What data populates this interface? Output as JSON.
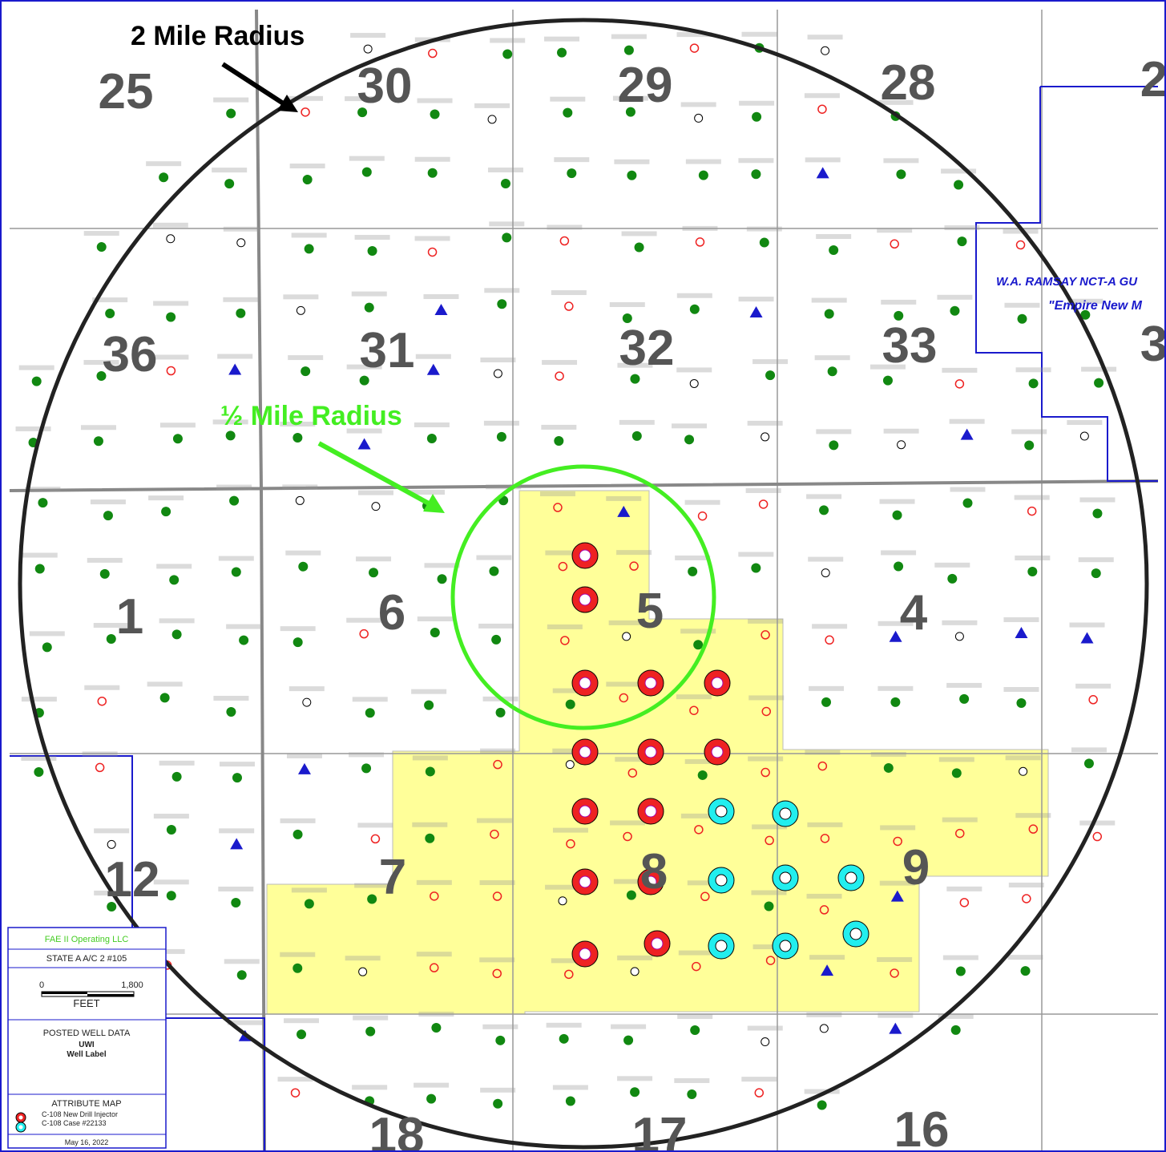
{
  "annotations": {
    "two_mile": "2 Mile Radius",
    "half_mile": "½ Mile Radius",
    "ramsay_unit": "W.A. RAMSAY NCT-A GU",
    "empire": "\"Empire New M"
  },
  "sections": [
    "25",
    "30",
    "29",
    "28",
    "2",
    "36",
    "31",
    "32",
    "33",
    "3",
    "1",
    "6",
    "5",
    "4",
    "12",
    "7",
    "8",
    "9",
    "18",
    "17",
    "16"
  ],
  "legend": {
    "operator": "FAE II Operating LLC",
    "well": "STATE A A/C 2 #105",
    "scale_start": "0",
    "scale_end": "1,800",
    "scale_unit": "FEET",
    "posted_title": "POSTED WELL DATA",
    "posted_uwi": "UWI",
    "posted_label": "Well Label",
    "attr_title": "ATTRIBUTE MAP",
    "attr_new": "C-108 New Drill Injector",
    "attr_case": "C-108 Case #22133",
    "date": "May 16, 2022"
  }
}
